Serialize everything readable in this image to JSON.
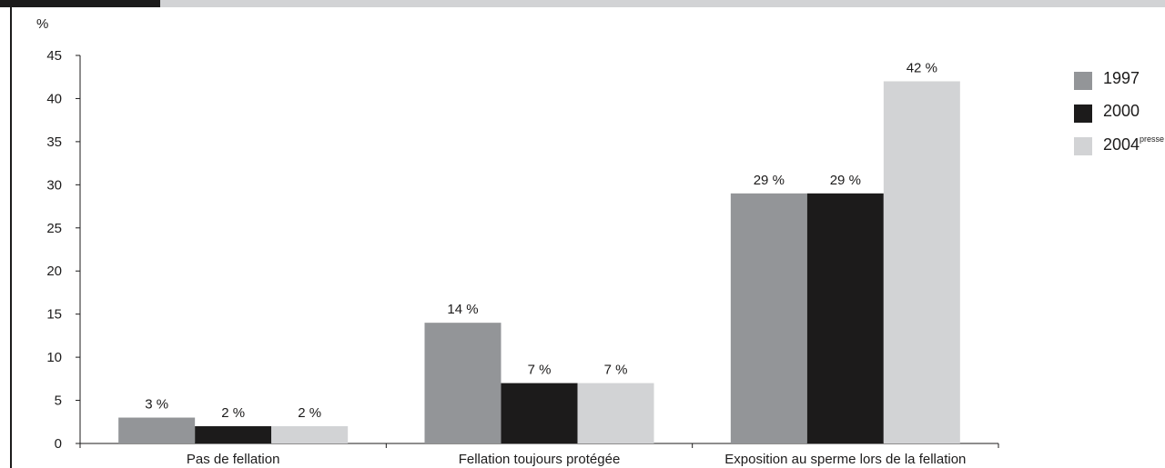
{
  "chart_data": {
    "type": "bar",
    "ylabel": "%",
    "ylim": [
      0,
      45
    ],
    "yticks": [
      0,
      5,
      10,
      15,
      20,
      25,
      30,
      35,
      40,
      45
    ],
    "categories": [
      "Pas de fellation",
      "Fellation toujours protégée",
      "Exposition au sperme lors de la fellation"
    ],
    "series": [
      {
        "name": "1997",
        "values": [
          3,
          14,
          29
        ],
        "labels": [
          "3 %",
          "14 %",
          "29 %"
        ],
        "color": "#939598"
      },
      {
        "name": "2000",
        "values": [
          2,
          7,
          29
        ],
        "labels": [
          "2 %",
          "7 %",
          "29 %"
        ],
        "color": "#1c1b1b"
      },
      {
        "name": "2004",
        "name_sup": "presse",
        "values": [
          2,
          7,
          42
        ],
        "labels": [
          "2 %",
          "7 %",
          "42 %"
        ],
        "color": "#d2d3d5"
      }
    ],
    "grid": false,
    "legend_position": "right"
  }
}
